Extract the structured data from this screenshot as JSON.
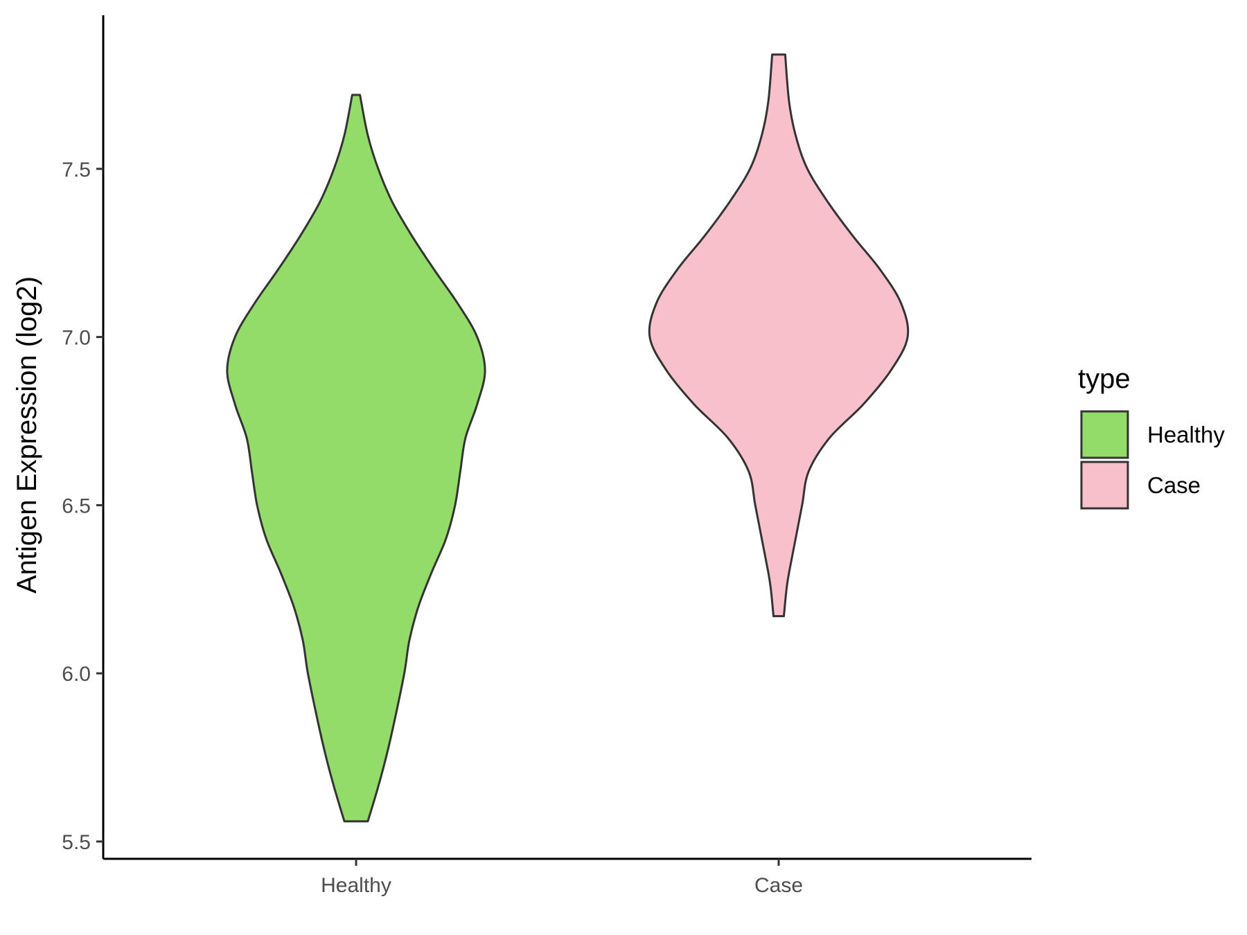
{
  "chart_data": {
    "type": "violin",
    "ylabel": "Antigen Expression (log2)",
    "xlabel": "",
    "ylim": [
      5.45,
      7.95
    ],
    "yticks": [
      5.5,
      6.0,
      6.5,
      7.0,
      7.5
    ],
    "ytick_labels": [
      "5.5",
      "6.0",
      "6.5",
      "7.0",
      "7.5"
    ],
    "categories": [
      "Healthy",
      "Case"
    ],
    "grid": false,
    "legend": {
      "title": "type",
      "position": "right",
      "entries": [
        "Healthy",
        "Case"
      ]
    },
    "series": [
      {
        "name": "Healthy",
        "color": "#93dc6a",
        "min": 5.56,
        "max": 7.72,
        "density_profile": [
          [
            5.56,
            0.09
          ],
          [
            5.65,
            0.16
          ],
          [
            5.75,
            0.23
          ],
          [
            5.85,
            0.29
          ],
          [
            6.0,
            0.37
          ],
          [
            6.1,
            0.41
          ],
          [
            6.2,
            0.48
          ],
          [
            6.3,
            0.58
          ],
          [
            6.4,
            0.69
          ],
          [
            6.5,
            0.76
          ],
          [
            6.6,
            0.8
          ],
          [
            6.7,
            0.84
          ],
          [
            6.8,
            0.93
          ],
          [
            6.9,
            0.99
          ],
          [
            7.0,
            0.93
          ],
          [
            7.1,
            0.78
          ],
          [
            7.2,
            0.6
          ],
          [
            7.3,
            0.43
          ],
          [
            7.4,
            0.28
          ],
          [
            7.5,
            0.17
          ],
          [
            7.6,
            0.09
          ],
          [
            7.72,
            0.03
          ]
        ]
      },
      {
        "name": "Case",
        "color": "#f8c0cb",
        "min": 6.17,
        "max": 7.84,
        "density_profile": [
          [
            6.17,
            0.04
          ],
          [
            6.25,
            0.06
          ],
          [
            6.3,
            0.08
          ],
          [
            6.4,
            0.13
          ],
          [
            6.5,
            0.18
          ],
          [
            6.6,
            0.23
          ],
          [
            6.7,
            0.39
          ],
          [
            6.8,
            0.65
          ],
          [
            6.9,
            0.86
          ],
          [
            7.0,
            0.99
          ],
          [
            7.1,
            0.94
          ],
          [
            7.2,
            0.78
          ],
          [
            7.3,
            0.57
          ],
          [
            7.4,
            0.38
          ],
          [
            7.5,
            0.22
          ],
          [
            7.6,
            0.13
          ],
          [
            7.7,
            0.08
          ],
          [
            7.84,
            0.05
          ]
        ]
      }
    ]
  }
}
